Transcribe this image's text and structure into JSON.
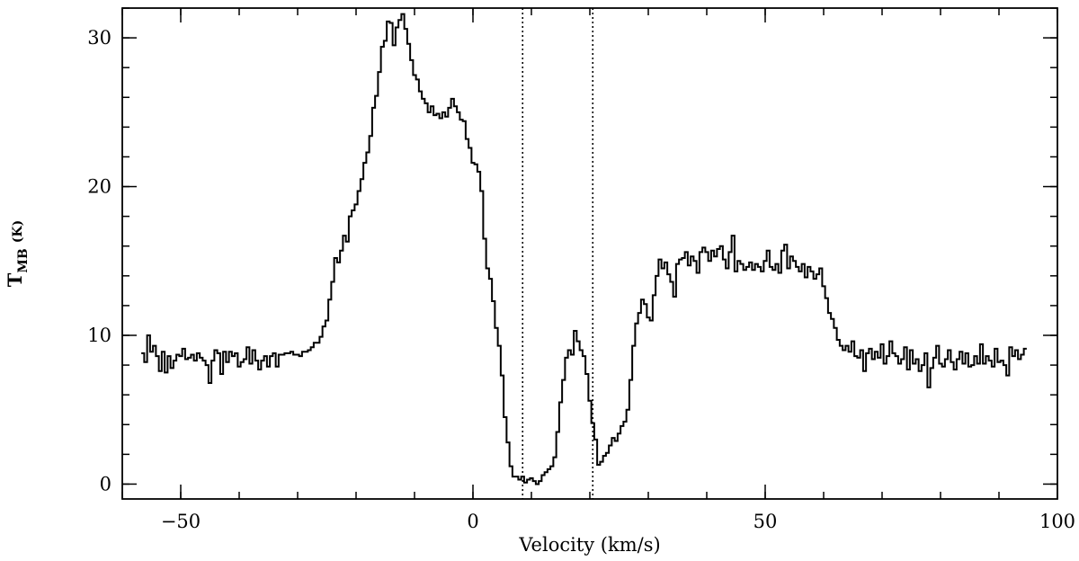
{
  "chart_data": {
    "type": "line",
    "style": "step",
    "xlabel": "Velocity (km/s)",
    "ylabel": {
      "main": "T",
      "subscript": "MB",
      "unit": "(K)"
    },
    "xlim": [
      -60,
      100
    ],
    "ylim": [
      -1,
      32
    ],
    "x_ticks": [
      {
        "value": -50,
        "label": "−50"
      },
      {
        "value": 0,
        "label": "0"
      },
      {
        "value": 50,
        "label": "50"
      },
      {
        "value": 100,
        "label": "100"
      }
    ],
    "y_ticks": [
      {
        "value": 0,
        "label": "0"
      },
      {
        "value": 10,
        "label": "10"
      },
      {
        "value": 20,
        "label": "20"
      },
      {
        "value": 30,
        "label": "30"
      }
    ],
    "x_minor_step": 10,
    "y_minor_step": 2,
    "reference_lines": [
      {
        "x": 8.5,
        "style": "dotted"
      },
      {
        "x": 20.5,
        "style": "dotted"
      }
    ],
    "series": [
      {
        "x_start": -56.5,
        "x_step": 0.5,
        "y": [
          8.8,
          8.2,
          10.0,
          8.9,
          9.3,
          8.6,
          7.6,
          8.9,
          7.5,
          8.6,
          7.8,
          8.3,
          8.7,
          8.6,
          9.1,
          8.4,
          8.5,
          8.7,
          8.3,
          8.8,
          8.5,
          8.3,
          8.0,
          6.8,
          8.3,
          9.0,
          8.8,
          7.4,
          8.9,
          8.2,
          8.9,
          8.6,
          8.8,
          7.9,
          8.2,
          8.4,
          9.2,
          8.1,
          9.0,
          8.3,
          7.7,
          8.3,
          8.6,
          7.9,
          8.6,
          8.8,
          7.9,
          8.7,
          8.7,
          8.8,
          8.8,
          8.9,
          8.7,
          8.7,
          8.6,
          8.9,
          8.9,
          9.0,
          9.2,
          9.5,
          9.5,
          9.9,
          10.6,
          11.0,
          12.4,
          13.6,
          15.2,
          14.9,
          15.7,
          16.7,
          16.3,
          18.0,
          18.4,
          18.8,
          19.7,
          20.5,
          21.6,
          22.3,
          23.4,
          25.3,
          26.1,
          27.7,
          29.4,
          29.8,
          31.1,
          31.0,
          29.5,
          30.7,
          31.2,
          31.6,
          30.6,
          29.6,
          28.5,
          27.5,
          27.2,
          26.4,
          25.9,
          25.6,
          25.0,
          25.4,
          24.8,
          24.9,
          24.6,
          25.0,
          24.7,
          25.3,
          25.9,
          25.4,
          25.0,
          24.5,
          24.4,
          23.2,
          22.6,
          21.6,
          21.5,
          21.0,
          19.7,
          16.5,
          14.5,
          13.8,
          12.3,
          10.5,
          9.3,
          7.3,
          4.5,
          2.8,
          1.2,
          0.5,
          0.5,
          0.3,
          0.5,
          0.1,
          0.3,
          0.4,
          0.2,
          0.0,
          0.2,
          0.6,
          0.8,
          1.0,
          1.2,
          1.8,
          3.5,
          5.5,
          7.0,
          8.5,
          9.0,
          8.7,
          10.3,
          9.6,
          9.0,
          8.6,
          7.4,
          5.6,
          4.1,
          3.0,
          1.3,
          1.5,
          1.9,
          2.1,
          2.6,
          3.1,
          2.9,
          3.4,
          3.9,
          4.2,
          5.0,
          7.0,
          9.3,
          10.8,
          11.5,
          12.4,
          12.1,
          11.2,
          11.0,
          12.7,
          14.0,
          15.1,
          14.5,
          14.9,
          14.1,
          13.6,
          12.6,
          14.8,
          15.1,
          15.2,
          15.6,
          14.7,
          15.3,
          15.0,
          14.2,
          15.6,
          15.9,
          15.6,
          15.0,
          15.7,
          15.3,
          15.8,
          16.0,
          15.1,
          14.5,
          15.6,
          16.7,
          14.3,
          15.0,
          14.8,
          14.4,
          14.6,
          14.9,
          14.4,
          14.8,
          14.6,
          14.3,
          15.0,
          15.7,
          14.6,
          14.4,
          14.8,
          14.2,
          15.7,
          16.1,
          14.5,
          15.3,
          15.0,
          14.6,
          14.3,
          14.8,
          13.9,
          14.6,
          14.3,
          13.8,
          14.1,
          14.5,
          13.3,
          12.5,
          11.5,
          11.1,
          10.5,
          9.7,
          9.3,
          9.0,
          9.3,
          8.9,
          9.6,
          8.6,
          8.5,
          9.0,
          7.6,
          8.8,
          9.1,
          8.4,
          8.9,
          8.5,
          9.4,
          8.1,
          8.6,
          9.6,
          8.8,
          8.6,
          8.1,
          8.4,
          9.2,
          7.7,
          9.0,
          8.1,
          8.4,
          7.6,
          8.0,
          8.8,
          6.5,
          7.8,
          8.5,
          9.3,
          8.1,
          7.9,
          8.4,
          9.0,
          8.2,
          7.7,
          8.4,
          8.9,
          8.1,
          8.8,
          7.9,
          8.0,
          8.6,
          8.1,
          9.4,
          8.1,
          8.6,
          8.3,
          7.9,
          9.1,
          8.2,
          8.3,
          8.0,
          7.3,
          9.2,
          8.6,
          9.0,
          8.4,
          8.7,
          9.1
        ]
      }
    ]
  }
}
